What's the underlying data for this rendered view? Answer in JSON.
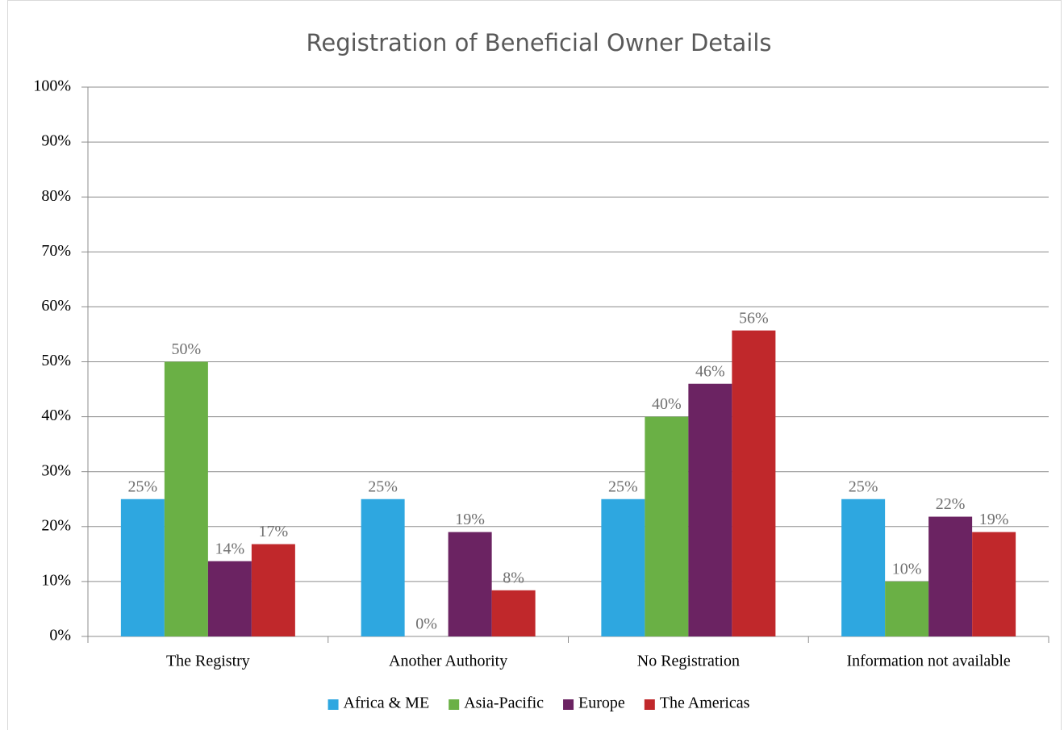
{
  "chart_data": {
    "type": "bar",
    "title": "Registration of Beneficial Owner Details",
    "categories": [
      "The Registry",
      "Another Authority",
      "No Registration",
      "Information not available"
    ],
    "series": [
      {
        "name": "Africa & ME",
        "color": "#2ea7e0",
        "values": [
          25,
          25,
          25,
          25
        ],
        "value_labels": [
          "25%",
          "25%",
          "25%",
          "25%"
        ]
      },
      {
        "name": "Asia-Pacific",
        "color": "#6ab045",
        "values": [
          50,
          0,
          40,
          10
        ],
        "value_labels": [
          "50%",
          "0%",
          "40%",
          "10%"
        ]
      },
      {
        "name": "Europe",
        "color": "#6b2362",
        "values": [
          13.7,
          19,
          46,
          21.8
        ],
        "value_labels": [
          "14%",
          "19%",
          "46%",
          "22%"
        ]
      },
      {
        "name": "The Americas",
        "color": "#c0282b",
        "values": [
          16.8,
          8.4,
          55.7,
          19
        ],
        "value_labels": [
          "17%",
          "8%",
          "56%",
          "19%"
        ]
      }
    ],
    "ylim": [
      0,
      100
    ],
    "yticks": [
      {
        "value": 0,
        "label": "0%"
      },
      {
        "value": 10,
        "label": "10%"
      },
      {
        "value": 20,
        "label": "20%"
      },
      {
        "value": 30,
        "label": "30%"
      },
      {
        "value": 40,
        "label": "40%"
      },
      {
        "value": 50,
        "label": "50%"
      },
      {
        "value": 60,
        "label": "60%"
      },
      {
        "value": 70,
        "label": "70%"
      },
      {
        "value": 80,
        "label": "80%"
      },
      {
        "value": 90,
        "label": "90%"
      },
      {
        "value": 100,
        "label": "100%"
      }
    ],
    "grid": true,
    "legend": "bottom"
  }
}
